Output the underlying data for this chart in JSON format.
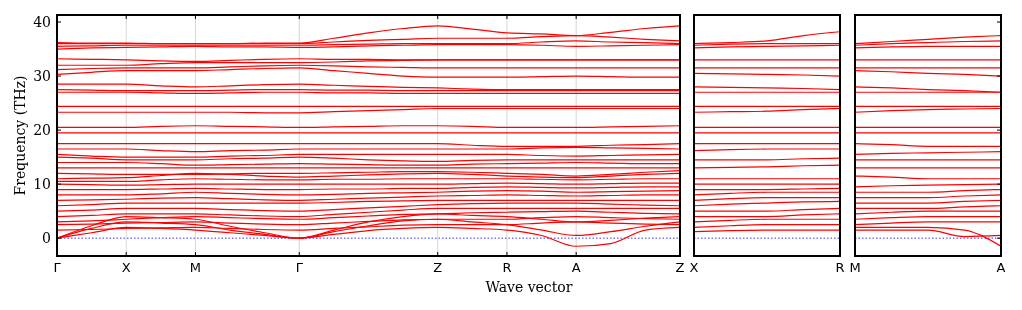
{
  "chart_data": [
    {
      "type": "line",
      "xlabel": "Wave vector",
      "ylabel": "Frequency (THz)",
      "ylim": [
        -3.3,
        41.3
      ],
      "yticks": [
        0,
        10,
        20,
        30,
        40
      ],
      "grid": "x",
      "line_style": "solid",
      "categories": [
        "Γ",
        null,
        "X",
        null,
        "M",
        null,
        null,
        "Γ",
        null,
        null,
        null,
        "Z",
        null,
        "R",
        null,
        "A",
        null,
        null,
        "Z"
      ],
      "ref_lines": [
        {
          "axis": "y",
          "value": 0,
          "color": "#0000ff",
          "line_style": "dotted"
        }
      ],
      "series": [
        {
          "color": "#ff0000",
          "values": [
            0,
            1,
            2,
            1.8,
            1.5,
            1,
            0.5,
            0,
            0.7,
            1.4,
            1.8,
            2,
            1.8,
            1.5,
            0.5,
            -1.5,
            -1,
            1.5,
            2
          ]
        },
        {
          "color": "#ff0000",
          "values": [
            0,
            1.8,
            3,
            2.8,
            2.5,
            1.5,
            0.7,
            0,
            1.2,
            2.3,
            3.2,
            3.5,
            3,
            2.5,
            1.5,
            0.5,
            1.2,
            2.2,
            3
          ]
        },
        {
          "color": "#ff0000",
          "values": [
            0,
            2.3,
            4,
            3.8,
            3.5,
            2.2,
            1,
            0,
            1.5,
            3,
            4,
            4.5,
            4.2,
            4,
            3.5,
            3,
            3.3,
            3.7,
            4
          ]
        },
        {
          "color": "#ff0000",
          "values": [
            1.5,
            1.6,
            1.8,
            1.9,
            2,
            1.8,
            1.6,
            1.5,
            1.8,
            2.1,
            2.4,
            2.5,
            2.5,
            2.5,
            2.8,
            3,
            2.8,
            2.6,
            2.5
          ]
        },
        {
          "color": "#ff0000",
          "values": [
            2.5,
            2.6,
            2.8,
            2.9,
            3,
            2.8,
            2.6,
            2.5,
            2.8,
            3.1,
            3.4,
            3.5,
            3.5,
            3.5,
            3.8,
            4,
            3.8,
            3.6,
            3.5
          ]
        },
        {
          "color": "#ff0000",
          "values": [
            3,
            3.2,
            3.5,
            3.8,
            4,
            3.8,
            3.6,
            3.5,
            3.8,
            4.1,
            4.4,
            4.5,
            4.7,
            4.8,
            4.9,
            5,
            4.8,
            4.6,
            4.5
          ]
        },
        {
          "color": "#ff0000",
          "values": [
            4,
            4.2,
            4.5,
            4.5,
            4.5,
            4.3,
            4.1,
            4,
            4.4,
            4.8,
            5.2,
            5.5,
            5.5,
            5.5,
            5.5,
            5.5,
            5.5,
            5.5,
            5.5
          ]
        },
        {
          "color": "#ff0000",
          "values": [
            5,
            5.2,
            5.5,
            5.5,
            5.5,
            5.3,
            5.1,
            5,
            5.3,
            5.6,
            5.9,
            6.2,
            6.4,
            6.5,
            6.5,
            6.5,
            6.3,
            6.1,
            6
          ]
        },
        {
          "color": "#ff0000",
          "values": [
            6,
            6.2,
            6.5,
            6.5,
            6.5,
            6.5,
            6.5,
            6.5,
            6.6,
            6.8,
            6.9,
            7,
            7,
            7,
            7,
            7,
            7,
            7,
            7
          ]
        },
        {
          "color": "#ff0000",
          "values": [
            7,
            7.1,
            7.2,
            7.4,
            7.5,
            7.3,
            7.1,
            7,
            7.2,
            7.4,
            7.6,
            7.8,
            7.9,
            8,
            7.9,
            7.8,
            7.9,
            8,
            8
          ]
        },
        {
          "color": "#ff0000",
          "values": [
            8,
            8,
            8,
            8.2,
            8.5,
            8.3,
            8.1,
            8,
            8.1,
            8.3,
            8.4,
            8.5,
            8.7,
            8.8,
            8.7,
            8.5,
            8.6,
            8.7,
            8.8
          ]
        },
        {
          "color": "#ff0000",
          "values": [
            9,
            9,
            9,
            9.1,
            9.2,
            9.1,
            9,
            9,
            9.1,
            9.1,
            9.2,
            9.2,
            9.4,
            9.5,
            9.4,
            9.3,
            9.4,
            9.5,
            9.5
          ]
        },
        {
          "color": "#ff0000",
          "values": [
            10,
            9.9,
            9.8,
            9.9,
            10,
            10,
            10,
            10,
            10,
            10,
            10,
            10,
            10.1,
            10.2,
            10.1,
            10,
            10.1,
            10.2,
            10.2
          ]
        },
        {
          "color": "#ff0000",
          "values": [
            10.5,
            10.5,
            10.5,
            10.8,
            11,
            10.9,
            10.8,
            10.8,
            10.9,
            10.9,
            11,
            11,
            11,
            11,
            10.9,
            10.8,
            10.9,
            11,
            11
          ]
        },
        {
          "color": "#ff0000",
          "values": [
            11,
            11.1,
            11.2,
            11.6,
            12,
            11.8,
            11.5,
            11.3,
            11.5,
            11.7,
            11.9,
            12,
            11.8,
            11.5,
            11.3,
            11.2,
            11.5,
            11.8,
            12
          ]
        },
        {
          "color": "#ff0000",
          "values": [
            12,
            11.9,
            11.8,
            11.8,
            11.8,
            11.9,
            12,
            12,
            12.1,
            12.2,
            12.3,
            12.3,
            12.2,
            12,
            11.8,
            11.5,
            11.8,
            12.2,
            12.5
          ]
        },
        {
          "color": "#ff0000",
          "values": [
            13,
            13,
            13,
            13,
            13,
            13,
            13,
            13,
            13,
            13,
            13,
            13,
            13,
            13,
            13,
            13,
            13,
            13,
            13
          ]
        },
        {
          "color": "#ff0000",
          "values": [
            14,
            14,
            14,
            13.8,
            13.5,
            13.6,
            13.7,
            13.8,
            13.7,
            13.6,
            13.5,
            13.5,
            13.7,
            13.8,
            13.9,
            14,
            13.9,
            13.8,
            13.8
          ]
        },
        {
          "color": "#ff0000",
          "values": [
            15,
            14.8,
            14.5,
            14.5,
            14.5,
            14.7,
            14.8,
            15,
            14.8,
            14.5,
            14.3,
            14.2,
            14.4,
            14.5,
            14.5,
            14.5,
            14.5,
            14.5,
            14.5
          ]
        },
        {
          "color": "#ff0000",
          "values": [
            15.5,
            15.2,
            15,
            15,
            15,
            15.2,
            15.3,
            15.5,
            15.5,
            15.5,
            15.5,
            15.5,
            15.5,
            15.5,
            15.3,
            15.2,
            15.3,
            15.4,
            15.5
          ]
        },
        {
          "color": "#ff0000",
          "values": [
            16.5,
            16.5,
            16.5,
            16.2,
            16,
            16.2,
            16.3,
            16.5,
            16.5,
            16.5,
            16.5,
            16.5,
            16.5,
            16.5,
            16.7,
            16.8,
            16.7,
            16.6,
            16.5
          ]
        },
        {
          "color": "#ff0000",
          "values": [
            17.5,
            17.5,
            17.5,
            17.5,
            17.5,
            17.5,
            17.5,
            17.5,
            17.5,
            17.5,
            17.5,
            17.5,
            17.2,
            17,
            17,
            17,
            17.2,
            17.3,
            17.5
          ]
        },
        {
          "color": "#ff0000",
          "values": [
            19.5,
            19.5,
            19.5,
            19.5,
            19.5,
            19.5,
            19.5,
            19.5,
            19.5,
            19.5,
            19.5,
            19.5,
            19.5,
            19.5,
            19.5,
            19.5,
            19.5,
            19.5,
            19.5
          ]
        },
        {
          "color": "#ff0000",
          "values": [
            20.5,
            20.5,
            20.5,
            20.7,
            20.8,
            20.7,
            20.6,
            20.5,
            20.6,
            20.7,
            20.8,
            20.8,
            20.7,
            20.5,
            20.5,
            20.5,
            20.6,
            20.7,
            20.8
          ]
        },
        {
          "color": "#ff0000",
          "values": [
            23.3,
            23.3,
            23.3,
            23.3,
            23.3,
            23.3,
            23.2,
            23.2,
            23.4,
            23.6,
            23.8,
            24,
            24,
            24,
            24,
            24,
            24,
            24,
            24
          ]
        },
        {
          "color": "#ff0000",
          "values": [
            24.4,
            24.4,
            24.4,
            24.4,
            24.4,
            24.4,
            24.4,
            24.4,
            24.4,
            24.4,
            24.4,
            24.4,
            24.4,
            24.4,
            24.4,
            24.4,
            24.4,
            24.4,
            24.4
          ]
        },
        {
          "color": "#ff0000",
          "values": [
            27,
            27,
            27,
            26.9,
            26.8,
            26.9,
            27,
            27,
            26.9,
            26.9,
            26.8,
            26.8,
            26.8,
            26.8,
            26.8,
            26.8,
            26.8,
            26.8,
            26.8
          ]
        },
        {
          "color": "#ff0000",
          "values": [
            27.5,
            27.4,
            27.3,
            27.3,
            27.3,
            27.4,
            27.5,
            27.5,
            27.4,
            27.4,
            27.3,
            27.3,
            27.3,
            27.3,
            27.3,
            27.3,
            27.3,
            27.3,
            27.3
          ]
        },
        {
          "color": "#ff0000",
          "values": [
            28.5,
            28.5,
            28.5,
            28.2,
            28,
            28.2,
            28.4,
            28.5,
            28.3,
            28.1,
            27.9,
            27.8,
            27.6,
            27.5,
            27.5,
            27.5,
            27.5,
            27.5,
            27.5
          ]
        },
        {
          "color": "#ff0000",
          "values": [
            30.3,
            30.7,
            31,
            31,
            31,
            31.2,
            31.4,
            31.5,
            31,
            30.5,
            30,
            29.8,
            29.8,
            29.8,
            29.9,
            30,
            29.9,
            29.8,
            29.8
          ]
        },
        {
          "color": "#ff0000",
          "values": [
            31.2,
            31.4,
            31.5,
            31.5,
            31.5,
            31.7,
            31.9,
            32,
            31.9,
            31.7,
            31.6,
            31.5,
            31.5,
            31.5,
            31.5,
            31.5,
            31.5,
            31.5,
            31.5
          ]
        },
        {
          "color": "#ff0000",
          "values": [
            32,
            32,
            32,
            32.3,
            32.5,
            32.5,
            32.5,
            32.5,
            32.6,
            32.8,
            32.9,
            33,
            33,
            33,
            33,
            33,
            33,
            33,
            33
          ]
        },
        {
          "color": "#ff0000",
          "values": [
            33.2,
            33.1,
            33,
            32.8,
            32.7,
            32.9,
            33.1,
            33.2,
            33.1,
            33.1,
            33,
            33,
            33,
            33,
            33,
            33,
            33,
            33,
            33
          ]
        },
        {
          "color": "#ff0000",
          "values": [
            35,
            35.2,
            35.3,
            35.4,
            35.5,
            35.4,
            35.4,
            35.3,
            35.4,
            35.6,
            35.7,
            35.8,
            35.8,
            35.8,
            35.7,
            35.5,
            35.6,
            35.7,
            35.8
          ]
        },
        {
          "color": "#ff0000",
          "values": [
            35.5,
            35.6,
            35.7,
            35.7,
            35.7,
            35.7,
            35.7,
            35.7,
            35.8,
            35.9,
            36,
            36,
            36,
            36,
            36.3,
            36.5,
            36.3,
            36.2,
            36
          ]
        },
        {
          "color": "#ff0000",
          "values": [
            36,
            36,
            36,
            36,
            36,
            36,
            36,
            36,
            36.3,
            36.6,
            36.8,
            37,
            37,
            37,
            37.3,
            37.5,
            37.2,
            36.8,
            36.5
          ]
        },
        {
          "color": "#ff0000",
          "values": [
            36.2,
            36.1,
            36.1,
            36,
            36,
            36,
            36.1,
            36.1,
            37,
            38,
            38.8,
            39.3,
            38.7,
            38,
            37.8,
            37.5,
            38.1,
            38.8,
            39.3
          ]
        }
      ]
    },
    {
      "type": "line",
      "ylim": [
        -3.3,
        41.3
      ],
      "yticks": [
        0,
        10,
        20,
        30,
        40
      ],
      "line_style": "solid",
      "tick_labels": "x",
      "categories": [
        "X",
        null,
        null,
        null,
        "R"
      ],
      "ref_lines": [
        {
          "axis": "y",
          "value": 0,
          "color": "#0000ff",
          "line_style": "dotted"
        }
      ],
      "series": [
        {
          "color": "#ff0000",
          "values": [
            1.2,
            1.4,
            1.5,
            1.5,
            1.5
          ]
        },
        {
          "color": "#ff0000",
          "values": [
            2,
            2.3,
            2.5,
            2.5,
            2.5
          ]
        },
        {
          "color": "#ff0000",
          "values": [
            3,
            3.3,
            3.5,
            3.5,
            3.5
          ]
        },
        {
          "color": "#ff0000",
          "values": [
            4,
            4,
            4,
            4.3,
            4.5
          ]
        },
        {
          "color": "#ff0000",
          "values": [
            5,
            5,
            5,
            5.3,
            5.5
          ]
        },
        {
          "color": "#ff0000",
          "values": [
            6,
            6.3,
            6.5,
            6.7,
            6.8
          ]
        },
        {
          "color": "#ff0000",
          "values": [
            7,
            7.3,
            7.5,
            7.5,
            7.5
          ]
        },
        {
          "color": "#ff0000",
          "values": [
            8,
            8.3,
            8.5,
            8.5,
            8.5
          ]
        },
        {
          "color": "#ff0000",
          "values": [
            9,
            9,
            9,
            9.1,
            9.2
          ]
        },
        {
          "color": "#ff0000",
          "values": [
            10,
            10,
            10,
            10,
            10
          ]
        },
        {
          "color": "#ff0000",
          "values": [
            11,
            11,
            11,
            11,
            11
          ]
        },
        {
          "color": "#ff0000",
          "values": [
            13,
            13.1,
            13.2,
            13.4,
            13.5
          ]
        },
        {
          "color": "#ff0000",
          "values": [
            14.5,
            14.5,
            14.5,
            14.7,
            14.8
          ]
        },
        {
          "color": "#ff0000",
          "values": [
            16.2,
            16.4,
            16.5,
            16.5,
            16.5
          ]
        },
        {
          "color": "#ff0000",
          "values": [
            17.5,
            17.5,
            17.5,
            17.5,
            17.5
          ]
        },
        {
          "color": "#ff0000",
          "values": [
            19.5,
            19.5,
            19.5,
            19.5,
            19.5
          ]
        },
        {
          "color": "#ff0000",
          "values": [
            20.5,
            20.5,
            20.5,
            20.5,
            20.5
          ]
        },
        {
          "color": "#ff0000",
          "values": [
            23.3,
            23.4,
            23.5,
            23.8,
            24
          ]
        },
        {
          "color": "#ff0000",
          "values": [
            24.4,
            24.4,
            24.4,
            24.4,
            24.4
          ]
        },
        {
          "color": "#ff0000",
          "values": [
            27,
            27,
            27,
            27,
            27
          ]
        },
        {
          "color": "#ff0000",
          "values": [
            28,
            27.9,
            27.8,
            27.7,
            27.5
          ]
        },
        {
          "color": "#ff0000",
          "values": [
            30.5,
            30.4,
            30.3,
            30.2,
            30
          ]
        },
        {
          "color": "#ff0000",
          "values": [
            31.5,
            31.5,
            31.5,
            31.5,
            31.5
          ]
        },
        {
          "color": "#ff0000",
          "values": [
            33,
            33,
            33,
            33,
            33
          ]
        },
        {
          "color": "#ff0000",
          "values": [
            35.2,
            35.4,
            35.5,
            35.6,
            35.7
          ]
        },
        {
          "color": "#ff0000",
          "values": [
            35.7,
            35.9,
            36,
            36,
            36
          ]
        },
        {
          "color": "#ff0000",
          "values": [
            36,
            36.2,
            36.5,
            37.5,
            38.2
          ]
        }
      ]
    },
    {
      "type": "line",
      "ylim": [
        -3.3,
        41.3
      ],
      "yticks": [
        0,
        10,
        20,
        30,
        40
      ],
      "line_style": "solid",
      "tick_labels": "x",
      "categories": [
        "M",
        null,
        null,
        null,
        "A"
      ],
      "ref_lines": [
        {
          "axis": "y",
          "value": 0,
          "color": "#0000ff",
          "line_style": "dotted"
        }
      ],
      "series": [
        {
          "color": "#ff0000",
          "values": [
            1.5,
            1.5,
            1.5,
            0.3,
            0.5
          ]
        },
        {
          "color": "#ff0000",
          "values": [
            2,
            2,
            2,
            1.5,
            -1.5
          ]
        },
        {
          "color": "#ff0000",
          "values": [
            2.5,
            2.8,
            3,
            3,
            3
          ]
        },
        {
          "color": "#ff0000",
          "values": [
            3.5,
            3.8,
            4,
            4,
            4
          ]
        },
        {
          "color": "#ff0000",
          "values": [
            4.5,
            4.8,
            5,
            5,
            5
          ]
        },
        {
          "color": "#ff0000",
          "values": [
            5.5,
            5.5,
            5.5,
            5.8,
            6
          ]
        },
        {
          "color": "#ff0000",
          "values": [
            6.5,
            6.5,
            6.5,
            6.8,
            7
          ]
        },
        {
          "color": "#ff0000",
          "values": [
            7.5,
            7.5,
            7.5,
            7.8,
            8
          ]
        },
        {
          "color": "#ff0000",
          "values": [
            8.5,
            8.5,
            8.5,
            8.8,
            9
          ]
        },
        {
          "color": "#ff0000",
          "values": [
            9.5,
            9.7,
            9.8,
            9.9,
            10
          ]
        },
        {
          "color": "#ff0000",
          "values": [
            11.5,
            11.3,
            11,
            11,
            11
          ]
        },
        {
          "color": "#ff0000",
          "values": [
            13,
            13,
            13,
            13,
            13
          ]
        },
        {
          "color": "#ff0000",
          "values": [
            14.5,
            14.5,
            14.5,
            14.5,
            14.5
          ]
        },
        {
          "color": "#ff0000",
          "values": [
            15.5,
            15.7,
            15.8,
            15.9,
            16
          ]
        },
        {
          "color": "#ff0000",
          "values": [
            17.5,
            17.3,
            17,
            17,
            17
          ]
        },
        {
          "color": "#ff0000",
          "values": [
            19.5,
            19.5,
            19.5,
            19.5,
            19.5
          ]
        },
        {
          "color": "#ff0000",
          "values": [
            20.5,
            20.5,
            20.5,
            20.5,
            20.5
          ]
        },
        {
          "color": "#ff0000",
          "values": [
            23.3,
            23.6,
            23.8,
            23.9,
            24
          ]
        },
        {
          "color": "#ff0000",
          "values": [
            24.4,
            24.4,
            24.4,
            24.4,
            24.4
          ]
        },
        {
          "color": "#ff0000",
          "values": [
            27,
            27,
            27,
            27,
            27
          ]
        },
        {
          "color": "#ff0000",
          "values": [
            28,
            27.8,
            27.5,
            27.3,
            27
          ]
        },
        {
          "color": "#ff0000",
          "values": [
            31,
            30.8,
            30.5,
            30.3,
            30
          ]
        },
        {
          "color": "#ff0000",
          "values": [
            31.5,
            31.5,
            31.5,
            31.5,
            31.5
          ]
        },
        {
          "color": "#ff0000",
          "values": [
            33,
            33,
            33,
            33,
            33
          ]
        },
        {
          "color": "#ff0000",
          "values": [
            35.2,
            35.4,
            35.5,
            35.5,
            35.5
          ]
        },
        {
          "color": "#ff0000",
          "values": [
            35.7,
            36,
            36.2,
            36.4,
            36.5
          ]
        },
        {
          "color": "#ff0000",
          "values": [
            36,
            36.4,
            36.8,
            37.2,
            37.5
          ]
        }
      ]
    }
  ]
}
